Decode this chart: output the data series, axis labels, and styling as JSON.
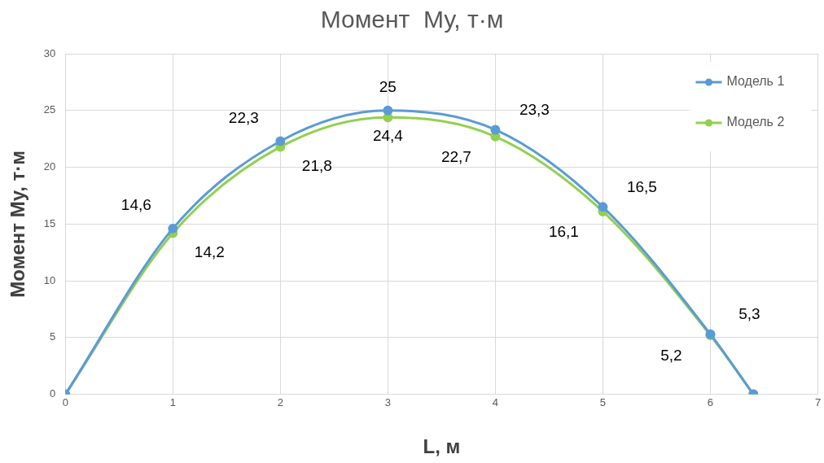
{
  "chart_data": {
    "type": "line",
    "title": "Момент  Му, т·м",
    "xlabel": "L, м",
    "ylabel": "Момент Му, т·м",
    "x": [
      0,
      1,
      2,
      3,
      4,
      5,
      6,
      6.4
    ],
    "series": [
      {
        "name": "Модель 1",
        "color": "#5b9bd5",
        "values": [
          0,
          14.6,
          22.3,
          25,
          23.3,
          16.5,
          5.3,
          0
        ],
        "value_labels": [
          null,
          "14,6",
          "22,3",
          "25",
          "23,3",
          "16,5",
          "5,3",
          null
        ]
      },
      {
        "name": "Модель 2",
        "color": "#92d050",
        "values": [
          0,
          14.2,
          21.8,
          24.4,
          22.7,
          16.1,
          5.2,
          0
        ],
        "value_labels": [
          null,
          "14,2",
          "21,8",
          "24,4",
          "22,7",
          "16,1",
          "5,2",
          null
        ]
      }
    ],
    "xlim": [
      0,
      7
    ],
    "xticks": [
      0,
      1,
      2,
      3,
      4,
      5,
      6,
      7
    ],
    "ylim": [
      0,
      30
    ],
    "yticks": [
      0,
      5,
      10,
      15,
      20,
      25,
      30
    ],
    "grid": true,
    "legend": "top right",
    "marker": "circle",
    "line_style": "solid"
  }
}
